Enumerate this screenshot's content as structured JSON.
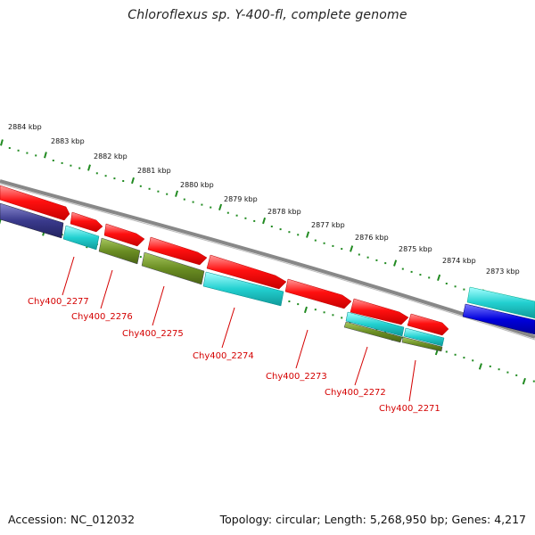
{
  "title": "Chloroflexus sp. Y-400-fl, complete genome",
  "footer": {
    "accession": "Accession: NC_012032",
    "summary": "Topology: circular; Length: 5,268,950 bp; Genes: 4,217"
  },
  "kbp_ticks": [
    {
      "label": "2884 kbp"
    },
    {
      "label": "2883 kbp"
    },
    {
      "label": "2882 kbp"
    },
    {
      "label": "2881 kbp"
    },
    {
      "label": "2880 kbp"
    },
    {
      "label": "2879 kbp"
    },
    {
      "label": "2878 kbp"
    },
    {
      "label": "2877 kbp"
    },
    {
      "label": "2876 kbp"
    },
    {
      "label": "2875 kbp"
    },
    {
      "label": "2874 kbp"
    },
    {
      "label": "2873 kbp"
    }
  ],
  "gene_labels": [
    {
      "label": "Chy400_2277"
    },
    {
      "label": "Chy400_2276"
    },
    {
      "label": "Chy400_2275"
    },
    {
      "label": "Chy400_2274"
    },
    {
      "label": "Chy400_2273"
    },
    {
      "label": "Chy400_2272"
    },
    {
      "label": "Chy400_2271"
    }
  ],
  "colors": {
    "cds": "#ff0000",
    "cyan": "#22d0d0",
    "olive": "#6b8e23",
    "navy": "#3a3a8c",
    "blue": "#0000dd",
    "backbone": "#888888",
    "ruler": "#228b22",
    "label": "#d40000"
  }
}
